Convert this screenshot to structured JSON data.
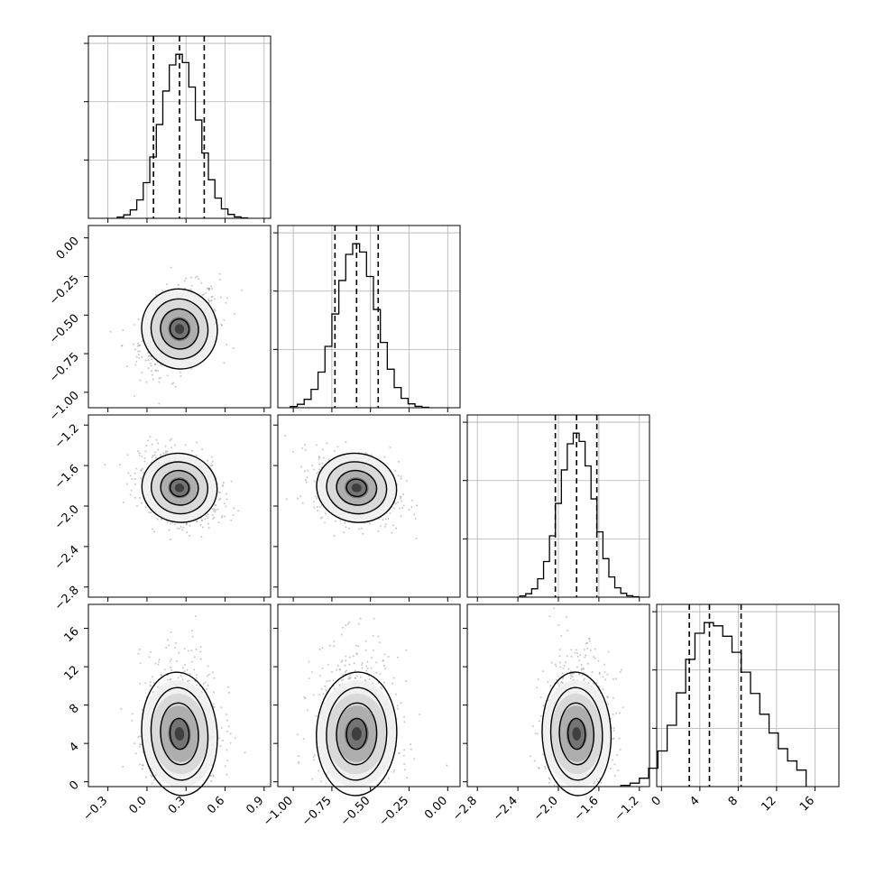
{
  "chart_data": {
    "type": "corner",
    "colors": {
      "ink": "#000000",
      "grid": "#b0b0b0",
      "scatter": "#9a9a9a"
    },
    "grid": true,
    "parameters": [
      {
        "range": [
          -0.45,
          0.95
        ],
        "ticks": [
          -0.3,
          0.0,
          0.3,
          0.6,
          0.9
        ],
        "tick_labels": [
          "−0.3",
          "0.0",
          "0.3",
          "0.6",
          "0.9"
        ],
        "mean": 0.25,
        "sd": 0.145,
        "quantiles": [
          0.05,
          0.25,
          0.44
        ]
      },
      {
        "range": [
          -1.1,
          0.08
        ],
        "ticks": [
          -1.0,
          -0.75,
          -0.5,
          -0.25,
          0.0
        ],
        "tick_labels": [
          "−1.00",
          "−0.75",
          "−0.50",
          "−0.25",
          "0.00"
        ],
        "mean": -0.59,
        "sd": 0.13,
        "quantiles": [
          -0.73,
          -0.59,
          -0.45
        ]
      },
      {
        "range": [
          -2.9,
          -1.1
        ],
        "ticks": [
          -2.8,
          -2.4,
          -2.0,
          -1.6,
          -1.2
        ],
        "tick_labels": [
          "−2.8",
          "−2.4",
          "−2.0",
          "−1.6",
          "−1.2"
        ],
        "mean": -1.82,
        "sd": 0.17,
        "quantiles": [
          -2.03,
          -1.82,
          -1.62
        ]
      },
      {
        "range": [
          -0.5,
          18.5
        ],
        "ticks": [
          0,
          4,
          8,
          12,
          16
        ],
        "tick_labels": [
          "0",
          "4",
          "8",
          "12",
          "16"
        ],
        "mean": 5.0,
        "sd": 2.8,
        "quantiles": [
          2.9,
          5.0,
          8.3
        ]
      }
    ],
    "correlations": {
      "1-0": 0.35,
      "2-0": -0.3,
      "2-1": -0.25,
      "3-0": 0.1,
      "3-1": -0.05,
      "3-2": 0.05
    },
    "hist_bins": 20,
    "contour_levels": [
      0.5,
      1.0,
      1.5,
      2.0
    ]
  }
}
